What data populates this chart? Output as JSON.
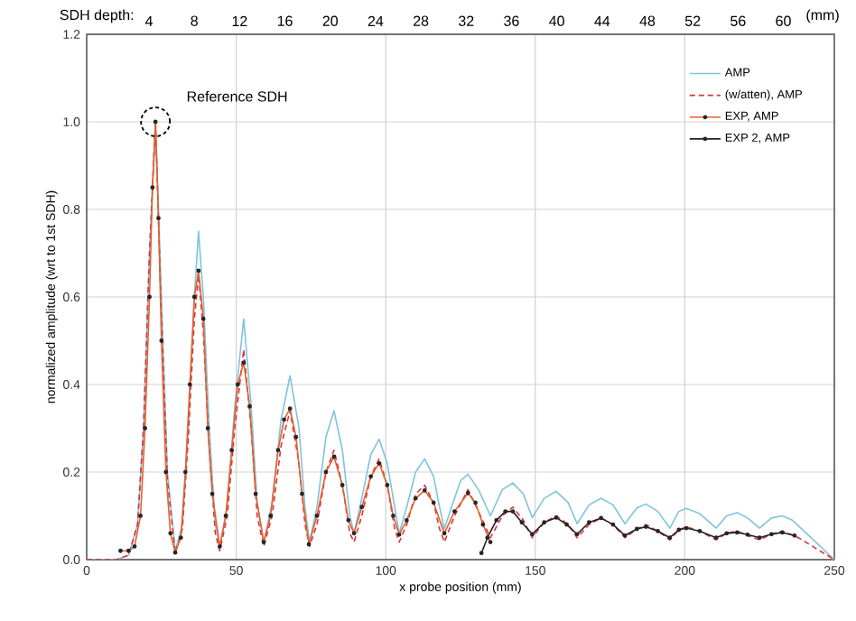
{
  "chart_data": {
    "type": "line",
    "xlabel": "x probe position (mm)",
    "ylabel": "normalized amplitude (wrt to 1st SDH)",
    "x2label": "SDH depth:",
    "xlim": [
      0,
      250
    ],
    "xticks": [
      0,
      50,
      100,
      150,
      200,
      250
    ],
    "ylim": [
      0,
      1.2
    ],
    "yticks": [
      {
        "value": 0,
        "label": "0.0"
      },
      {
        "value": 0.2,
        "label": "0.2"
      },
      {
        "value": 0.4,
        "label": "0.4"
      },
      {
        "value": 0.6,
        "label": "0.6"
      },
      {
        "value": 0.8,
        "label": "0.8"
      },
      {
        "value": 1.0,
        "label": "1.0"
      },
      {
        "value": 1.2,
        "label": "1.2"
      }
    ],
    "x2lim": [
      -1.5,
      64.5
    ],
    "x2ticks": [
      4,
      8,
      12,
      16,
      20,
      24,
      28,
      32,
      36,
      40,
      44,
      48,
      52,
      56,
      60
    ],
    "grid": true,
    "legend": "top right",
    "annotations": [
      "(mm)",
      {
        "text": "Reference SDH",
        "x": 23,
        "y": 1.0
      }
    ],
    "series": [
      {
        "name": "AMP",
        "color": "#7ec4dc",
        "line_style": "solid",
        "marker": "none",
        "x": [
          0,
          10,
          14,
          17,
          19,
          21,
          23,
          25,
          27,
          29.6,
          32,
          34,
          36,
          37.4,
          39,
          41,
          43,
          44.5,
          47,
          49.5,
          52.5,
          55,
          57,
          59.2,
          62,
          65,
          68,
          71,
          73,
          74.5,
          77,
          80,
          82.7,
          85.5,
          88,
          89.4,
          92,
          95,
          97.8,
          100.5,
          103,
          104.5,
          107,
          110,
          113,
          116,
          118,
          119.6,
          122,
          125,
          127.5,
          131,
          135,
          139,
          142.5,
          146,
          149,
          153,
          157,
          161,
          164,
          168,
          172,
          176,
          180,
          184,
          187,
          191,
          195,
          198,
          200.5,
          205,
          210.5,
          214,
          217.5,
          221,
          225,
          229,
          232.6,
          236,
          243,
          250
        ],
        "values": [
          0,
          0,
          0.01,
          0.08,
          0.3,
          0.7,
          1.0,
          0.6,
          0.2,
          0.02,
          0.08,
          0.3,
          0.6,
          0.75,
          0.6,
          0.3,
          0.08,
          0.03,
          0.12,
          0.35,
          0.55,
          0.35,
          0.13,
          0.04,
          0.13,
          0.32,
          0.42,
          0.3,
          0.12,
          0.04,
          0.12,
          0.28,
          0.34,
          0.25,
          0.1,
          0.06,
          0.14,
          0.24,
          0.275,
          0.22,
          0.12,
          0.06,
          0.12,
          0.2,
          0.23,
          0.19,
          0.12,
          0.07,
          0.12,
          0.18,
          0.195,
          0.16,
          0.1,
          0.16,
          0.175,
          0.15,
          0.096,
          0.14,
          0.156,
          0.13,
          0.082,
          0.125,
          0.14,
          0.125,
          0.082,
          0.118,
          0.127,
          0.11,
          0.072,
          0.11,
          0.117,
          0.105,
          0.072,
          0.1,
          0.107,
          0.095,
          0.072,
          0.095,
          0.1,
          0.09,
          0.045,
          0
        ]
      },
      {
        "name": "(w/atten), AMP",
        "color": "#e0303a",
        "line_style": "dashed",
        "marker": "none",
        "x": [
          0,
          10,
          14,
          17,
          19,
          21,
          23,
          25,
          27,
          29.6,
          32,
          34,
          36,
          37.4,
          39,
          41,
          43,
          44.5,
          47,
          49.5,
          52.5,
          55,
          57,
          59.2,
          62,
          65,
          68,
          71,
          73,
          74.5,
          77,
          80,
          82.7,
          85.5,
          88,
          89.4,
          92,
          95,
          97.8,
          100.5,
          103,
          104.5,
          107,
          110,
          113,
          116,
          118,
          119.6,
          123,
          127.5,
          131,
          135,
          139,
          142.5,
          146,
          149,
          153,
          157,
          161,
          164,
          168,
          172,
          176,
          180,
          184,
          187,
          191,
          195,
          198,
          200.5,
          205,
          210.5,
          214,
          217.5,
          221,
          225,
          229,
          232.6,
          238,
          244,
          250
        ],
        "values": [
          0,
          0,
          0.01,
          0.08,
          0.3,
          0.7,
          1.0,
          0.55,
          0.18,
          0.015,
          0.07,
          0.28,
          0.55,
          0.65,
          0.52,
          0.25,
          0.06,
          0.02,
          0.1,
          0.3,
          0.48,
          0.3,
          0.1,
          0.03,
          0.1,
          0.26,
          0.34,
          0.22,
          0.08,
          0.03,
          0.08,
          0.2,
          0.25,
          0.17,
          0.06,
          0.04,
          0.1,
          0.19,
          0.23,
          0.17,
          0.07,
          0.04,
          0.08,
          0.15,
          0.17,
          0.13,
          0.07,
          0.04,
          0.1,
          0.16,
          0.11,
          0.05,
          0.1,
          0.12,
          0.09,
          0.05,
          0.085,
          0.1,
          0.08,
          0.05,
          0.08,
          0.095,
          0.08,
          0.05,
          0.07,
          0.08,
          0.065,
          0.045,
          0.068,
          0.075,
          0.065,
          0.045,
          0.06,
          0.065,
          0.055,
          0.045,
          0.058,
          0.065,
          0.05,
          0.025,
          0
        ]
      },
      {
        "name": "EXP, AMP",
        "color": "#e2622e",
        "line_style": "solid",
        "marker": "circle",
        "x": [
          11.3,
          14,
          16,
          18,
          19.5,
          21,
          22,
          23,
          24,
          25,
          26.5,
          28,
          29.6,
          31.5,
          33,
          34.5,
          36,
          37.4,
          39,
          40.5,
          42,
          44.5,
          46.5,
          48.5,
          50.5,
          52.5,
          54.5,
          56.5,
          59.2,
          61.5,
          64,
          66,
          68,
          70,
          72,
          74.3,
          77,
          80,
          82.7,
          85.5,
          87.5,
          89.4,
          92,
          95,
          97.8,
          100.5,
          102.5,
          104.5,
          107,
          110,
          113,
          116,
          119.6,
          123,
          127.5,
          130,
          132.5,
          135
        ],
        "values": [
          0.02,
          0.02,
          0.03,
          0.1,
          0.3,
          0.6,
          0.85,
          1.0,
          0.78,
          0.5,
          0.2,
          0.06,
          0.016,
          0.05,
          0.2,
          0.4,
          0.6,
          0.66,
          0.55,
          0.3,
          0.15,
          0.03,
          0.1,
          0.25,
          0.4,
          0.45,
          0.35,
          0.15,
          0.04,
          0.1,
          0.25,
          0.32,
          0.345,
          0.28,
          0.15,
          0.035,
          0.1,
          0.2,
          0.235,
          0.17,
          0.09,
          0.06,
          0.12,
          0.19,
          0.22,
          0.17,
          0.1,
          0.057,
          0.09,
          0.14,
          0.158,
          0.13,
          0.06,
          0.11,
          0.152,
          0.13,
          0.08,
          0.04
        ]
      },
      {
        "name": "EXP 2, AMP",
        "color": "#222222",
        "line_style": "solid",
        "marker": "circle",
        "x": [
          132,
          134,
          137,
          140,
          142.5,
          145.5,
          149,
          153,
          157,
          160.5,
          164,
          168,
          172,
          176,
          180,
          184,
          187,
          191,
          195,
          198,
          200.5,
          205,
          210.5,
          214,
          217.5,
          221,
          225,
          229,
          232.6,
          236.7
        ],
        "values": [
          0.015,
          0.05,
          0.09,
          0.11,
          0.11,
          0.085,
          0.058,
          0.085,
          0.096,
          0.08,
          0.058,
          0.085,
          0.095,
          0.08,
          0.055,
          0.07,
          0.075,
          0.065,
          0.05,
          0.068,
          0.072,
          0.065,
          0.05,
          0.06,
          0.062,
          0.057,
          0.05,
          0.058,
          0.062,
          0.055
        ]
      }
    ]
  }
}
